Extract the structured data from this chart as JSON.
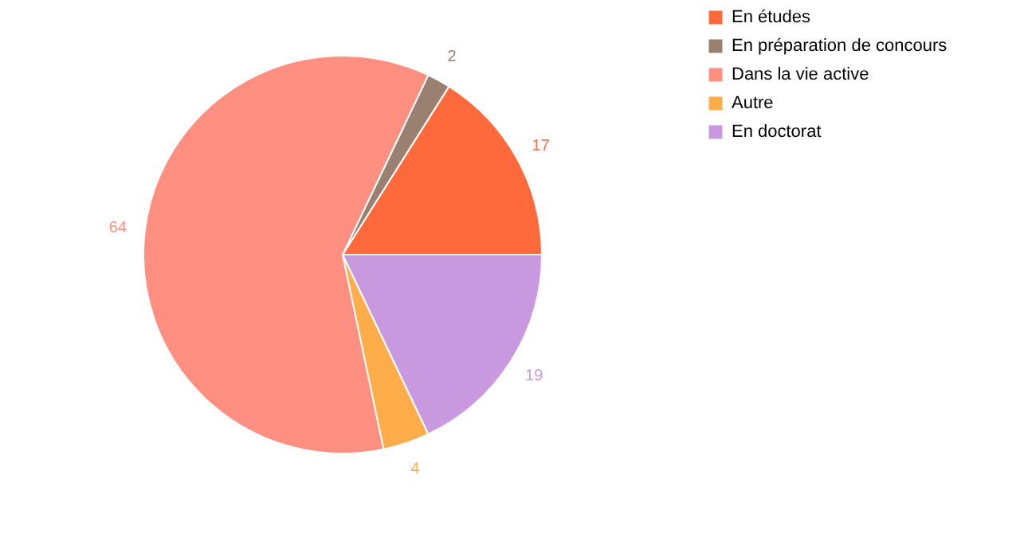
{
  "chart_data": {
    "type": "pie",
    "categories": [
      "En études",
      "En préparation de concours",
      "Dans la vie active",
      "Autre",
      "En doctorat"
    ],
    "values": [
      17,
      2,
      64,
      4,
      19
    ],
    "colors": [
      "#ff6a3d",
      "#9a8070",
      "#ff8f80",
      "#ffad4a",
      "#c999e0"
    ],
    "data_labels": true,
    "legend": "right"
  }
}
